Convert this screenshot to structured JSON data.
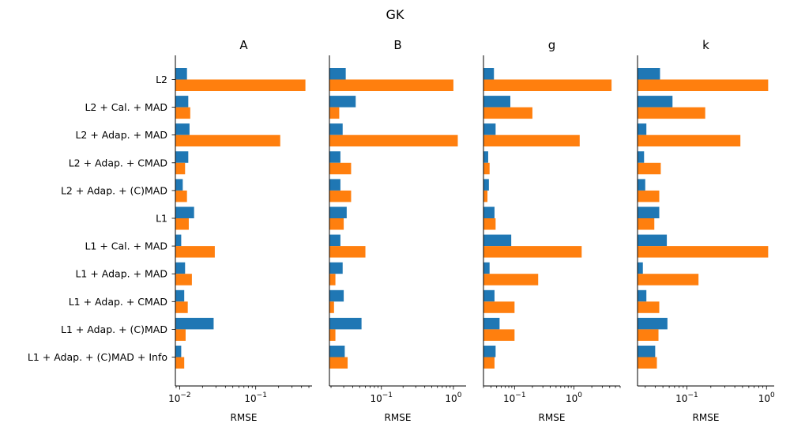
{
  "figure": {
    "title": "GK",
    "colors": {
      "series1": "#1f77b4",
      "series2": "#ff7f0e"
    }
  },
  "chart_data": [
    {
      "type": "bar",
      "orientation": "horizontal",
      "title": "A",
      "xlabel": "RMSE",
      "xscale": "log",
      "xlim": [
        0.0088,
        0.55
      ],
      "xticks": [
        {
          "value": 0.01,
          "label": "10",
          "exp": "−2"
        },
        {
          "value": 0.1,
          "label": "10",
          "exp": "−1"
        }
      ],
      "categories": [
        "L2",
        "L2 + Cal. + MAD",
        "L2 + Adap. + MAD",
        "L2 + Adap. + CMAD",
        "L2 + Adap. + (C)MAD",
        "L1",
        "L1 + Cal. + MAD",
        "L1 + Adap. + MAD",
        "L1 + Adap. + CMAD",
        "L1 + Adap. + (C)MAD",
        "L1 + Adap. + (C)MAD + Info"
      ],
      "series": [
        {
          "values": [
            0.0125,
            0.013,
            0.0135,
            0.013,
            0.011,
            0.0155,
            0.0105,
            0.0118,
            0.0115,
            0.028,
            0.0105
          ]
        },
        {
          "values": [
            0.45,
            0.0138,
            0.21,
            0.0118,
            0.0125,
            0.0132,
            0.029,
            0.0145,
            0.0128,
            0.012,
            0.0115
          ]
        }
      ]
    },
    {
      "type": "bar",
      "orientation": "horizontal",
      "title": "B",
      "xlabel": "RMSE",
      "xscale": "log",
      "xlim": [
        0.019,
        1.5
      ],
      "xticks": [
        {
          "value": 0.1,
          "label": "10",
          "exp": "−1"
        },
        {
          "value": 1,
          "label": "10",
          "exp": "0"
        }
      ],
      "categories": [
        "L2",
        "L2 + Cal. + MAD",
        "L2 + Adap. + MAD",
        "L2 + Adap. + CMAD",
        "L2 + Adap. + (C)MAD",
        "L1",
        "L1 + Cal. + MAD",
        "L1 + Adap. + MAD",
        "L1 + Adap. + CMAD",
        "L1 + Adap. + (C)MAD",
        "L1 + Adap. + (C)MAD + Info"
      ],
      "series": [
        {
          "values": [
            0.032,
            0.044,
            0.029,
            0.027,
            0.027,
            0.033,
            0.027,
            0.029,
            0.03,
            0.053,
            0.031
          ]
        },
        {
          "values": [
            1.0,
            0.026,
            1.15,
            0.038,
            0.038,
            0.03,
            0.06,
            0.023,
            0.022,
            0.023,
            0.034
          ]
        }
      ]
    },
    {
      "type": "bar",
      "orientation": "horizontal",
      "title": "g",
      "xlabel": "RMSE",
      "xscale": "log",
      "xlim": [
        0.03,
        6.0
      ],
      "xticks": [
        {
          "value": 0.1,
          "label": "10",
          "exp": "−1"
        },
        {
          "value": 1,
          "label": "10",
          "exp": "0"
        }
      ],
      "categories": [
        "L2",
        "L2 + Cal. + MAD",
        "L2 + Adap. + MAD",
        "L2 + Adap. + CMAD",
        "L2 + Adap. + (C)MAD",
        "L1",
        "L1 + Cal. + MAD",
        "L1 + Adap. + MAD",
        "L1 + Adap. + CMAD",
        "L1 + Adap. + (C)MAD",
        "L1 + Adap. + (C)MAD + Info"
      ],
      "series": [
        {
          "values": [
            0.045,
            0.085,
            0.048,
            0.036,
            0.037,
            0.046,
            0.088,
            0.038,
            0.046,
            0.056,
            0.048
          ]
        },
        {
          "values": [
            4.3,
            0.2,
            1.25,
            0.038,
            0.035,
            0.048,
            1.35,
            0.25,
            0.1,
            0.1,
            0.046
          ]
        }
      ]
    },
    {
      "type": "bar",
      "orientation": "horizontal",
      "title": "k",
      "xlabel": "RMSE",
      "xscale": "log",
      "xlim": [
        0.024,
        1.25
      ],
      "xticks": [
        {
          "value": 0.1,
          "label": "10",
          "exp": "−1"
        },
        {
          "value": 1,
          "label": "10",
          "exp": "0"
        }
      ],
      "categories": [
        "L2",
        "L2 + Cal. + MAD",
        "L2 + Adap. + MAD",
        "L2 + Adap. + CMAD",
        "L2 + Adap. + (C)MAD",
        "L1",
        "L1 + Cal. + MAD",
        "L1 + Adap. + MAD",
        "L1 + Adap. + CMAD",
        "L1 + Adap. + (C)MAD",
        "L1 + Adap. + (C)MAD + Info"
      ],
      "series": [
        {
          "values": [
            0.046,
            0.066,
            0.031,
            0.029,
            0.03,
            0.045,
            0.056,
            0.028,
            0.031,
            0.057,
            0.04
          ]
        },
        {
          "values": [
            1.05,
            0.17,
            0.47,
            0.047,
            0.045,
            0.039,
            1.05,
            0.14,
            0.045,
            0.044,
            0.042
          ]
        }
      ]
    }
  ]
}
